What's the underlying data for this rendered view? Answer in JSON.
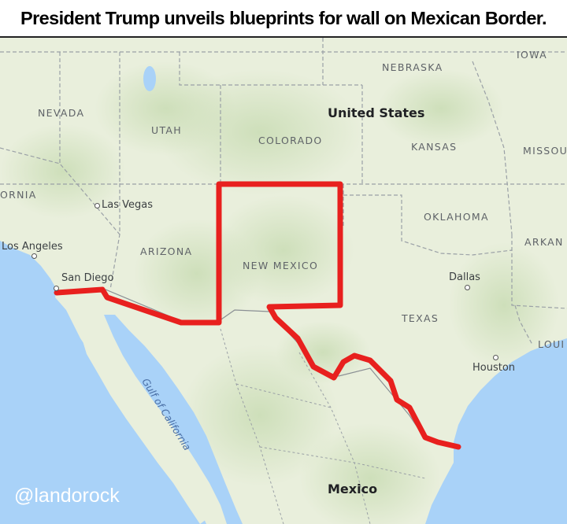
{
  "title": "President Trump unveils blueprints for wall on Mexican Border.",
  "map": {
    "country_labels": {
      "us": "United States",
      "mexico": "Mexico"
    },
    "state_labels": {
      "iowa": "IOWA",
      "nebraska": "NEBRASKA",
      "nevada": "NEVADA",
      "utah": "UTAH",
      "colorado": "COLORADO",
      "kansas": "KANSAS",
      "missouri": "MISSOU",
      "california": "ORNIA",
      "oklahoma": "OKLAHOMA",
      "arkansas": "ARKAN",
      "arizona": "ARIZONA",
      "new_mexico": "NEW MEXICO",
      "texas": "TEXAS",
      "louisiana": "LOUI"
    },
    "city_labels": {
      "las_vegas": "Las Vegas",
      "los_angeles": "Los Angeles",
      "san_diego": "San Diego",
      "dallas": "Dallas",
      "houston": "Houston"
    },
    "water_labels": {
      "gulf_of_california": "Gulf of California"
    },
    "wall_line_color": "#e8201e",
    "land_color": "#e9efdc",
    "water_color": "#a9d2f8"
  },
  "watermark": "@landorock"
}
